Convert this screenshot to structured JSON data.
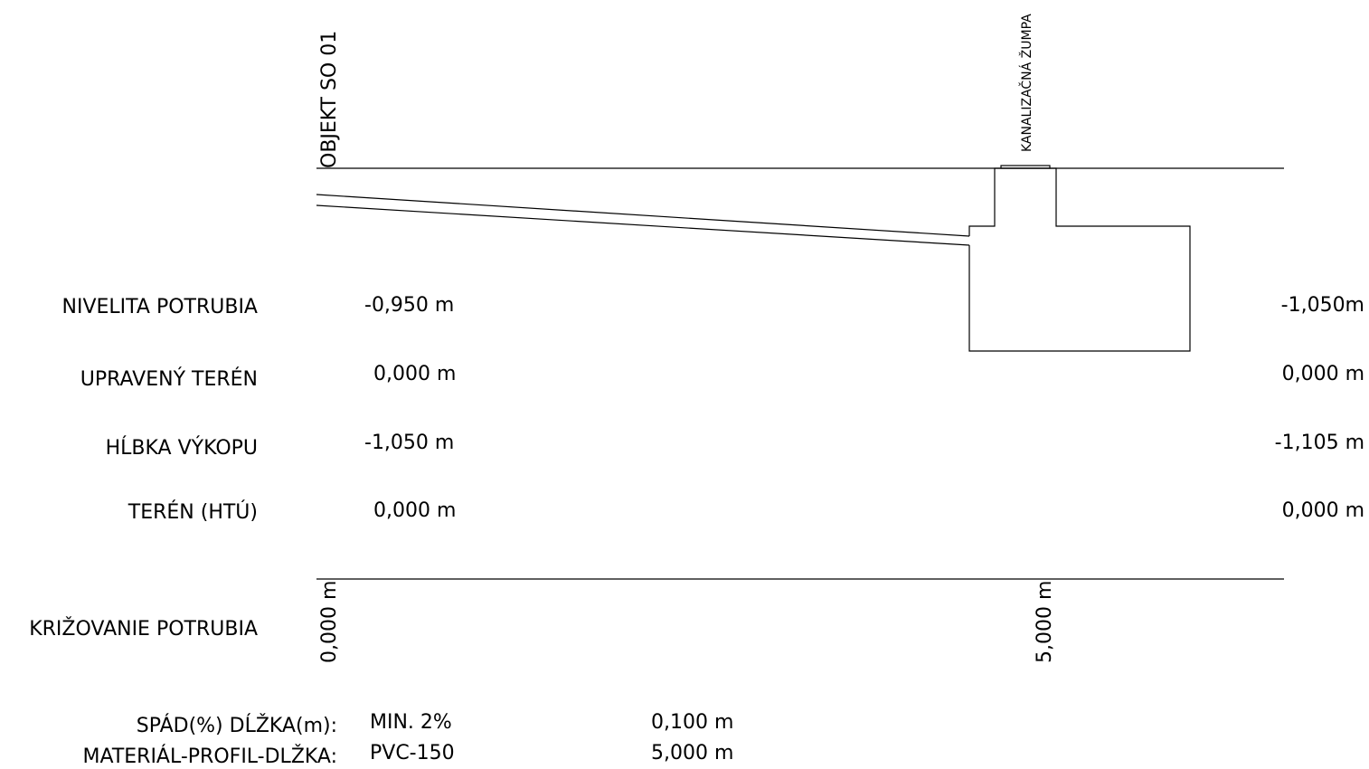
{
  "profile": {
    "start_object_label": "OBJEKT SO 01",
    "end_object_label": "KANALIZAČNÁ ŽUMPA"
  },
  "rows": [
    {
      "label": "NIVELITA POTRUBIA",
      "start_value": "-0,950 m",
      "end_value": "-1,050m"
    },
    {
      "label": "UPRAVENÝ TERÉN",
      "start_value": "0,000 m",
      "end_value": "0,000 m"
    },
    {
      "label": "HĹBKA VÝKOPU",
      "start_value": "-1,050 m",
      "end_value": "-1,105 m"
    },
    {
      "label": "TERÉN (HTÚ)",
      "start_value": "0,000 m",
      "end_value": "0,000 m"
    }
  ],
  "crossing": {
    "label": "KRIŽOVANIE POTRUBIA",
    "start_station": "0,000 m",
    "end_station": "5,000 m"
  },
  "footer": {
    "slope_label": "SPÁD(%) DĹŽKA(m):",
    "slope_value": "MIN. 2%",
    "slope_length": "0,100 m",
    "material_label": "MATERIÁL-PROFIL-DLŽKA:",
    "material_value": "PVC-150",
    "material_length": "5,000 m"
  }
}
